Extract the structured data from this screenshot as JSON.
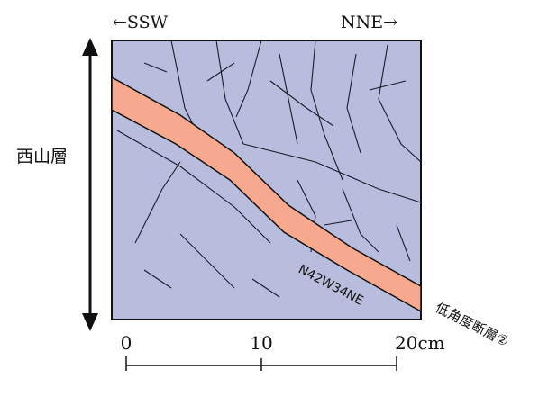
{
  "header": {
    "left": "←SSW",
    "right": "NNE→"
  },
  "formation": "西山層",
  "fault": {
    "orientation": "N42W34NE",
    "label": "低角度断層②"
  },
  "scale": {
    "ticks": [
      "0",
      "10",
      "20cm"
    ]
  }
}
